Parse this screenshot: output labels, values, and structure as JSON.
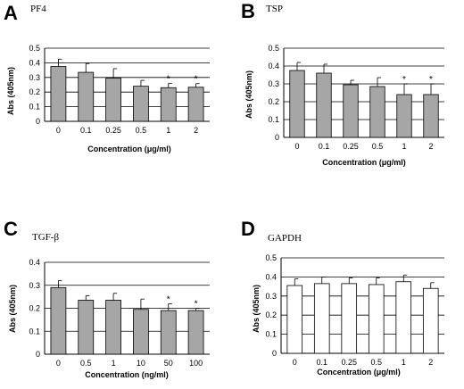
{
  "chart_data": [
    {
      "type": "bar",
      "panel": "A",
      "title": "PF4",
      "categories": [
        "0",
        "0.1",
        "0.25",
        "0.5",
        "1",
        "2"
      ],
      "values": [
        0.375,
        0.335,
        0.295,
        0.24,
        0.23,
        0.233
      ],
      "errors": [
        0.05,
        0.06,
        0.065,
        0.04,
        0.03,
        0.025
      ],
      "significant": [
        false,
        false,
        false,
        false,
        true,
        true
      ],
      "ylim": [
        0,
        0.5
      ],
      "yticks": [
        "0",
        "0.1",
        "0.2",
        "0.3",
        "0.4",
        "0.5"
      ],
      "xlabel": "Concentration (μg/ml)",
      "ylabel": "Abs (405nm)",
      "bar_color": "#a6a6a6",
      "grid": true
    },
    {
      "type": "bar",
      "panel": "B",
      "title": "TSP",
      "categories": [
        "0",
        "0.1",
        "0.25",
        "0.5",
        "1",
        "2"
      ],
      "values": [
        0.375,
        0.36,
        0.295,
        0.285,
        0.24,
        0.24
      ],
      "errors": [
        0.045,
        0.05,
        0.025,
        0.05,
        0.06,
        0.06
      ],
      "significant": [
        false,
        false,
        false,
        false,
        true,
        true
      ],
      "ylim": [
        0,
        0.5
      ],
      "yticks": [
        "0",
        "0.1",
        "0.2",
        "0.3",
        "0.4",
        "0.5"
      ],
      "xlabel": "Concentration (μg/ml)",
      "ylabel": "Abs (405nm)",
      "bar_color": "#a6a6a6",
      "grid": true
    },
    {
      "type": "bar",
      "panel": "C",
      "title": "TGF-β",
      "categories": [
        "0",
        "0.5",
        "1",
        "10",
        "50",
        "100"
      ],
      "values": [
        0.29,
        0.235,
        0.235,
        0.195,
        0.19,
        0.19
      ],
      "errors": [
        0.03,
        0.02,
        0.03,
        0.045,
        0.03,
        0.01
      ],
      "significant": [
        false,
        false,
        false,
        false,
        true,
        true
      ],
      "ylim": [
        0,
        0.4
      ],
      "yticks": [
        "0",
        "0.1",
        "0.2",
        "0.3",
        "0.4"
      ],
      "xlabel": "Concentration (ng/ml)",
      "ylabel": "Abs (405nm)",
      "bar_color": "#a6a6a6",
      "grid": true
    },
    {
      "type": "bar",
      "panel": "D",
      "title": "GAPDH",
      "categories": [
        "0",
        "0.1",
        "0.25",
        "0.5",
        "1",
        "2"
      ],
      "values": [
        0.355,
        0.365,
        0.365,
        0.36,
        0.375,
        0.34
      ],
      "errors": [
        0.035,
        0.035,
        0.03,
        0.035,
        0.035,
        0.03
      ],
      "significant": [
        false,
        false,
        false,
        false,
        false,
        false
      ],
      "ylim": [
        0,
        0.5
      ],
      "yticks": [
        "0",
        "0.1",
        "0.2",
        "0.3",
        "0.4",
        "0.5"
      ],
      "xlabel": "Concentration (μg/ml)",
      "ylabel": "Abs (405nm)",
      "bar_color": "#ffffff",
      "grid": true
    }
  ]
}
